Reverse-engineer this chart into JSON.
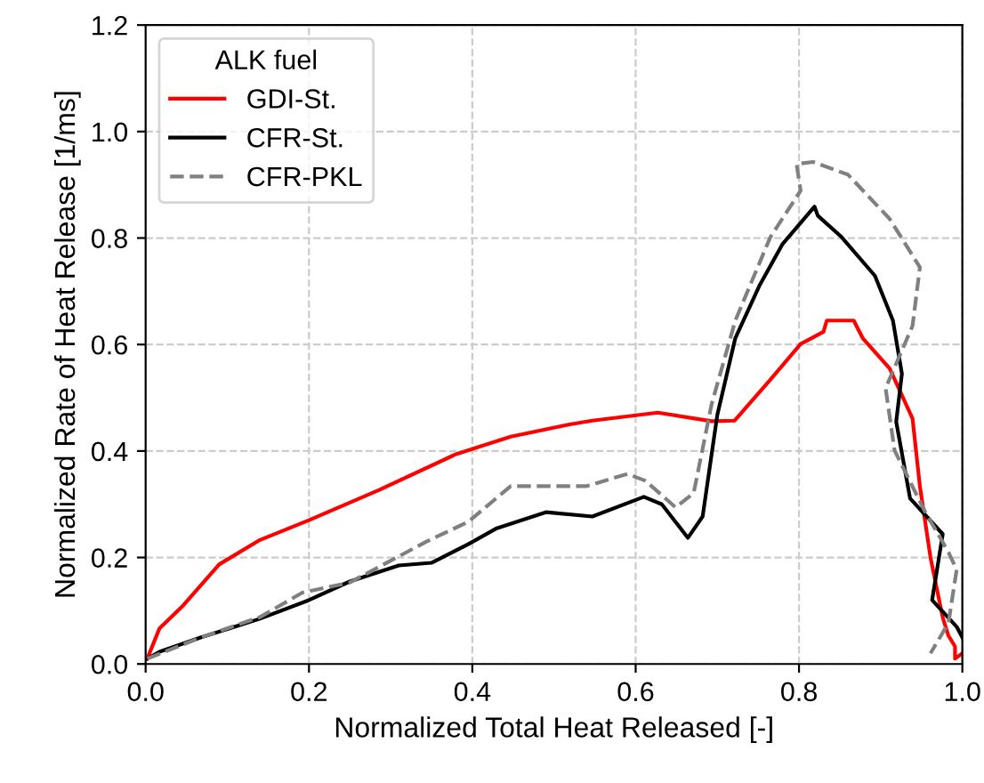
{
  "chart_data": {
    "type": "line",
    "xlabel": "Normalized Total Heat Released [-]",
    "ylabel": "Normalized Rate of Heat Release [1/ms]",
    "legend_title": "ALK fuel",
    "legend": "top left",
    "grid": true,
    "xlim": [
      0,
      1
    ],
    "ylim": [
      0,
      1.2
    ],
    "xticks": [
      {
        "value": 0,
        "label": "0.0"
      },
      {
        "value": 0.2,
        "label": "0.2"
      },
      {
        "value": 0.4,
        "label": "0.4"
      },
      {
        "value": 0.6,
        "label": "0.6"
      },
      {
        "value": 0.8,
        "label": "0.8"
      },
      {
        "value": 1,
        "label": "1.0"
      }
    ],
    "yticks": [
      {
        "value": 0,
        "label": "0.0"
      },
      {
        "value": 0.2,
        "label": "0.2"
      },
      {
        "value": 0.4,
        "label": "0.4"
      },
      {
        "value": 0.6,
        "label": "0.6"
      },
      {
        "value": 0.8,
        "label": "0.8"
      },
      {
        "value": 1,
        "label": "1.0"
      },
      {
        "value": 1.2,
        "label": "1.2"
      }
    ],
    "series": [
      {
        "name": "GDI-St.",
        "color": "#ff0000",
        "line_style": "solid",
        "x": [
          0.002,
          0.017,
          0.046,
          0.09,
          0.14,
          0.2,
          0.286,
          0.38,
          0.447,
          0.519,
          0.547,
          0.627,
          0.693,
          0.721,
          0.765,
          0.802,
          0.83,
          0.834,
          0.867,
          0.878,
          0.911,
          0.939,
          0.948,
          0.961,
          0.976,
          0.983,
          0.991,
          0.991,
          1.0
        ],
        "values": [
          0.01,
          0.067,
          0.11,
          0.187,
          0.233,
          0.27,
          0.327,
          0.394,
          0.427,
          0.45,
          0.457,
          0.472,
          0.456,
          0.457,
          0.534,
          0.601,
          0.624,
          0.645,
          0.645,
          0.612,
          0.555,
          0.461,
          0.334,
          0.2,
          0.087,
          0.053,
          0.033,
          0.01,
          0.02
        ]
      },
      {
        "name": "CFR-St.",
        "color": "#000000",
        "line_style": "solid",
        "x": [
          0.002,
          0.017,
          0.068,
          0.14,
          0.2,
          0.25,
          0.31,
          0.35,
          0.395,
          0.43,
          0.49,
          0.547,
          0.61,
          0.632,
          0.664,
          0.682,
          0.7,
          0.722,
          0.752,
          0.78,
          0.819,
          0.823,
          0.852,
          0.893,
          0.915,
          0.926,
          0.919,
          0.936,
          0.976,
          0.963,
          0.993,
          1.0
        ],
        "values": [
          0.01,
          0.023,
          0.05,
          0.085,
          0.12,
          0.155,
          0.185,
          0.19,
          0.225,
          0.255,
          0.285,
          0.277,
          0.314,
          0.3,
          0.237,
          0.277,
          0.468,
          0.612,
          0.712,
          0.789,
          0.859,
          0.842,
          0.802,
          0.729,
          0.645,
          0.545,
          0.455,
          0.311,
          0.244,
          0.12,
          0.07,
          0.05
        ]
      },
      {
        "name": "CFR-PKL",
        "color": "#808080",
        "line_style": "dashed",
        "x": [
          0.002,
          0.068,
          0.14,
          0.192,
          0.25,
          0.344,
          0.395,
          0.447,
          0.503,
          0.54,
          0.59,
          0.612,
          0.649,
          0.671,
          0.693,
          0.722,
          0.765,
          0.802,
          0.797,
          0.817,
          0.86,
          0.911,
          0.948,
          0.939,
          0.906,
          0.917,
          0.954,
          0.983,
          0.993,
          0.983,
          0.961
        ],
        "values": [
          0.01,
          0.05,
          0.088,
          0.134,
          0.153,
          0.23,
          0.267,
          0.334,
          0.334,
          0.334,
          0.357,
          0.344,
          0.294,
          0.321,
          0.488,
          0.645,
          0.802,
          0.889,
          0.939,
          0.943,
          0.919,
          0.836,
          0.745,
          0.635,
          0.518,
          0.401,
          0.287,
          0.21,
          0.177,
          0.077,
          0.02
        ]
      }
    ]
  }
}
